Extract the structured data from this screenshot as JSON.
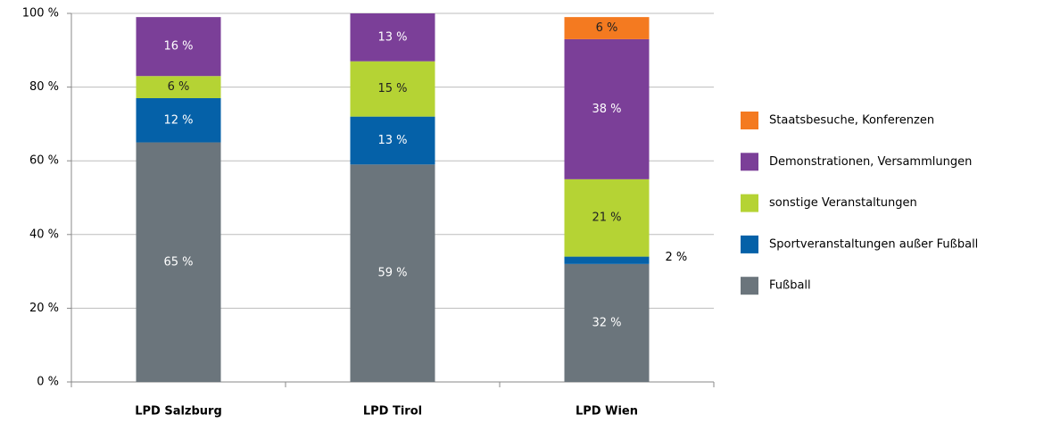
{
  "chart_data": {
    "type": "stacked_bar",
    "categories": [
      "LPD Salzburg",
      "LPD Tirol",
      "LPD Wien"
    ],
    "series": [
      {
        "name": "Fußball",
        "color": "#6b757c",
        "values": [
          65,
          59,
          32
        ],
        "value_labels": [
          "65 %",
          "59 %",
          "32 %"
        ]
      },
      {
        "name": "Sportveranstaltungen außer Fußball",
        "color": "#0561a8",
        "values": [
          12,
          13,
          2
        ],
        "value_labels": [
          "12 %",
          "13 %",
          "2 %"
        ]
      },
      {
        "name": "sonstige Veranstaltungen",
        "color": "#b5d334",
        "values": [
          6,
          15,
          21
        ],
        "value_labels": [
          "6 %",
          "15 %",
          "21 %"
        ]
      },
      {
        "name": "Demonstrationen, Versammlungen",
        "color": "#7b3f98",
        "values": [
          16,
          13,
          38
        ],
        "value_labels": [
          "16 %",
          "13 %",
          "38 %"
        ]
      },
      {
        "name": "Staatsbesuche, Konferenzen",
        "color": "#f47a20",
        "values": [
          0,
          0,
          6
        ],
        "value_labels": [
          null,
          null,
          "6 %"
        ]
      }
    ],
    "ylim": [
      0,
      100
    ],
    "yticks": [
      {
        "value": 0,
        "label": "0 %"
      },
      {
        "value": 20,
        "label": "20 %"
      },
      {
        "value": 40,
        "label": "40 %"
      },
      {
        "value": 60,
        "label": "60 %"
      },
      {
        "value": 80,
        "label": "80 %"
      },
      {
        "value": 100,
        "label": "100 %"
      }
    ],
    "grid": true,
    "legend": "right"
  }
}
